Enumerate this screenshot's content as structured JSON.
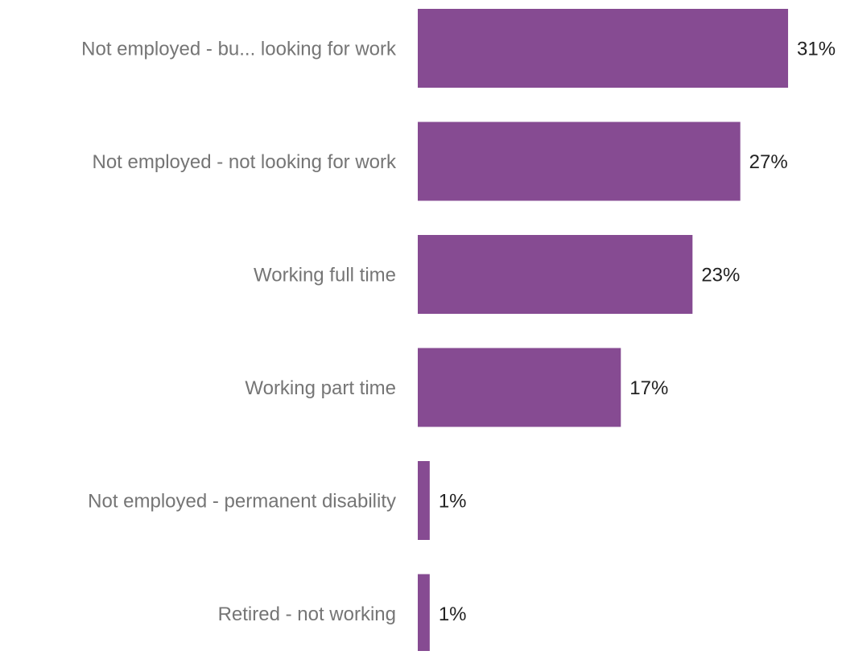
{
  "chart_data": {
    "type": "bar",
    "orientation": "horizontal",
    "title": "",
    "xlabel": "",
    "ylabel": "",
    "categories": [
      "Not employed - bu... looking for work",
      "Not employed - not looking for work",
      "Working full time",
      "Working part time",
      "Not employed - permanent disability",
      "Retired - not working"
    ],
    "values": [
      31,
      27,
      23,
      17,
      1,
      1
    ],
    "value_labels": [
      "31%",
      "27%",
      "23%",
      "17%",
      "1%",
      "1%"
    ],
    "unit": "%",
    "grid": false,
    "legend": "none",
    "colors": {
      "bar": "#864b92",
      "category_label": "#757575",
      "value_label": "#222222"
    }
  }
}
